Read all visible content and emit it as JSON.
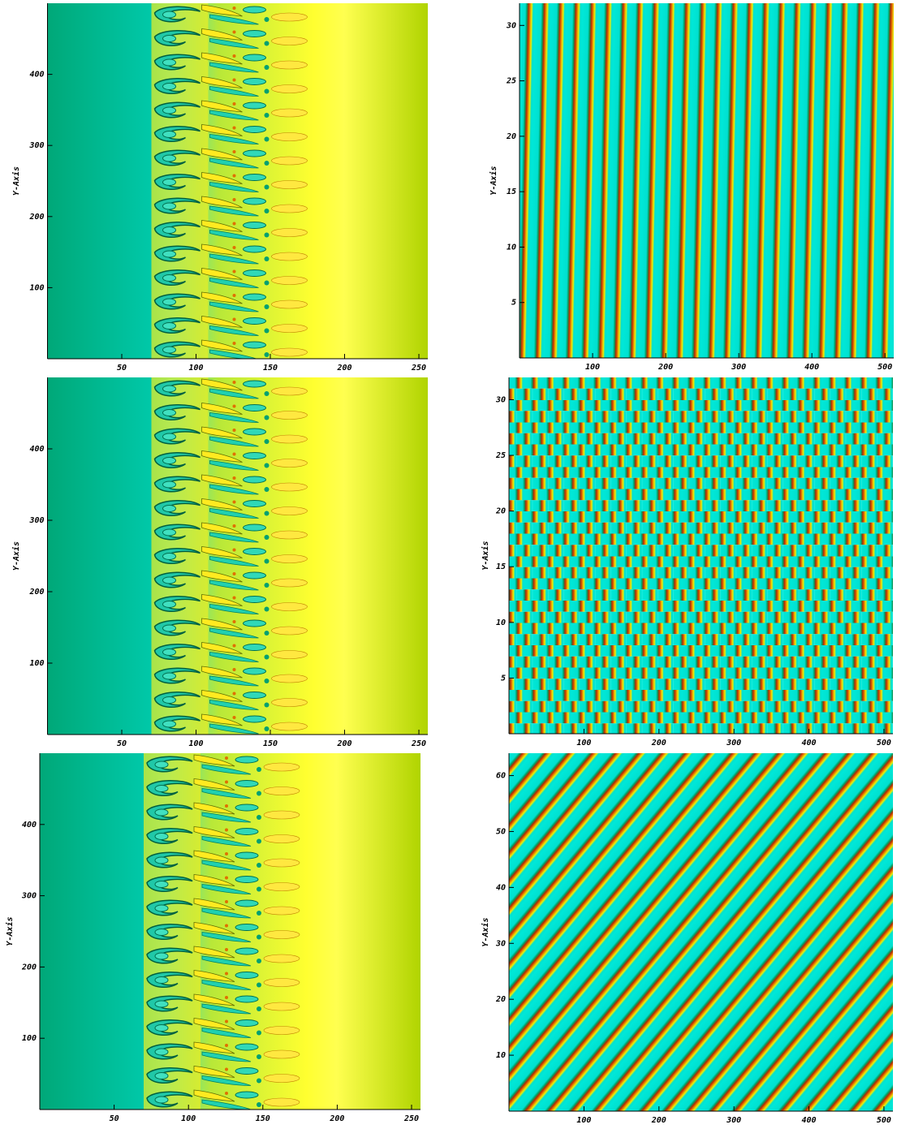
{
  "chart_data": [
    {
      "type": "heatmap",
      "ylabel": "Y-Axis",
      "xlim": [
        0,
        256
      ],
      "ylim": [
        0,
        500
      ],
      "xticks": [
        50,
        100,
        150,
        200,
        250
      ],
      "yticks": [
        100,
        200,
        300,
        400
      ]
    },
    {
      "type": "heatmap",
      "ylabel": "Y-Axis",
      "xlim": [
        0,
        512
      ],
      "ylim": [
        0,
        32
      ],
      "xticks": [
        100,
        200,
        300,
        400,
        500
      ],
      "yticks": [
        5,
        10,
        15,
        20,
        25,
        30
      ]
    },
    {
      "type": "heatmap",
      "ylabel": "Y-Axis",
      "xlim": [
        0,
        256
      ],
      "ylim": [
        0,
        500
      ],
      "xticks": [
        50,
        100,
        150,
        200,
        250
      ],
      "yticks": [
        100,
        200,
        300,
        400
      ]
    },
    {
      "type": "heatmap",
      "ylabel": "Y-Axis",
      "xlim": [
        0,
        512
      ],
      "ylim": [
        0,
        32
      ],
      "xticks": [
        100,
        200,
        300,
        400,
        500
      ],
      "yticks": [
        5,
        10,
        15,
        20,
        25,
        30
      ]
    },
    {
      "type": "heatmap",
      "ylabel": "Y-Axis",
      "xlim": [
        0,
        256
      ],
      "ylim": [
        0,
        500
      ],
      "xticks": [
        50,
        100,
        150,
        200,
        250
      ],
      "yticks": [
        100,
        200,
        300,
        400
      ]
    },
    {
      "type": "heatmap",
      "ylabel": "Y-Axis",
      "xlim": [
        0,
        512
      ],
      "ylim": [
        0,
        64
      ],
      "xticks": [
        100,
        200,
        300,
        400,
        500
      ],
      "yticks": [
        10,
        20,
        30,
        40,
        50,
        60
      ]
    }
  ]
}
